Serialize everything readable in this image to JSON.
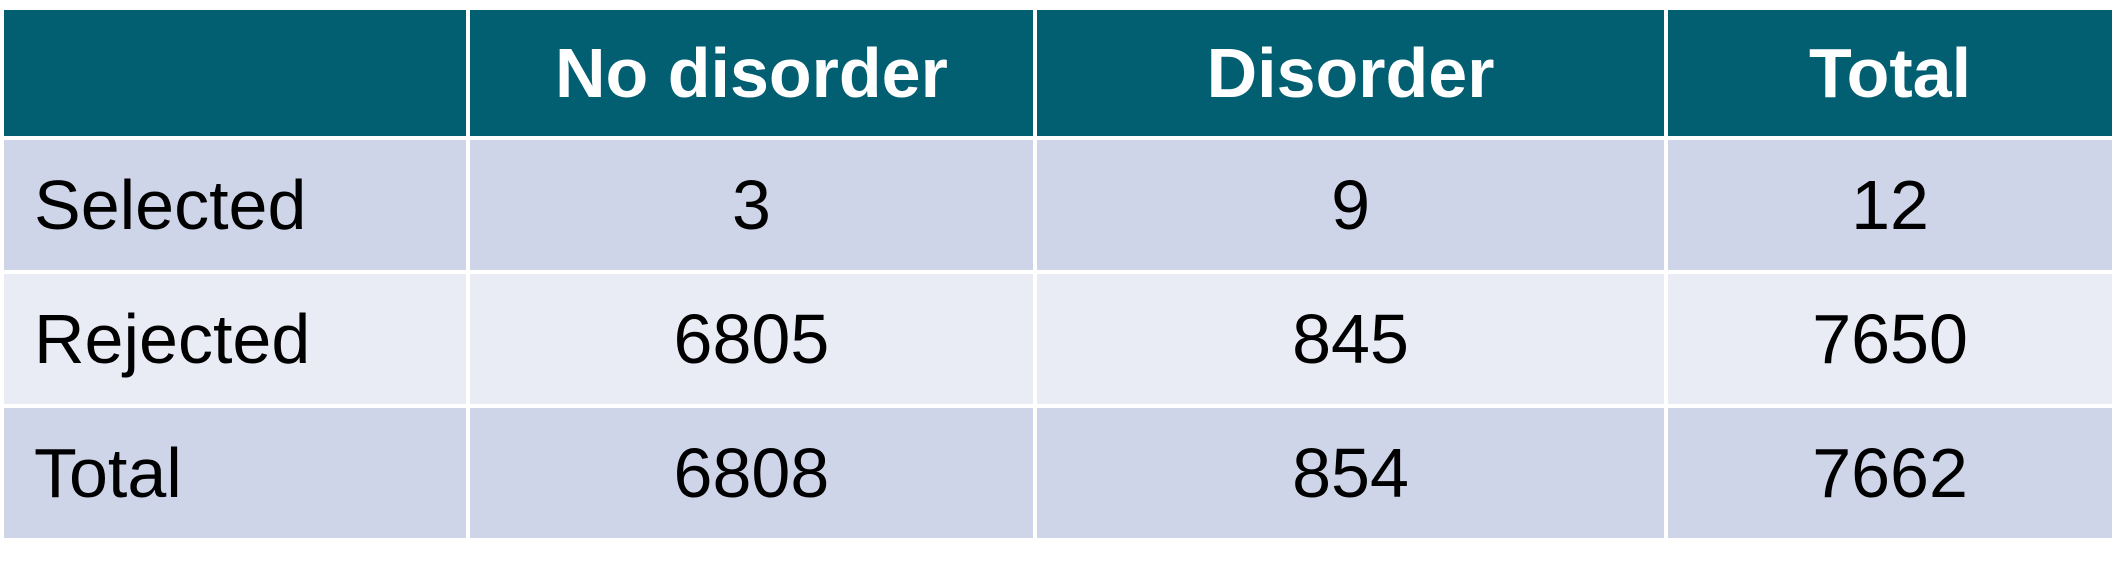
{
  "table": {
    "headers": [
      "",
      "No disorder",
      "Disorder",
      "Total"
    ],
    "rows": [
      {
        "label": "Selected",
        "cells": [
          "3",
          "9",
          "12"
        ]
      },
      {
        "label": "Rejected",
        "cells": [
          "6805",
          "845",
          "7650"
        ]
      },
      {
        "label": "Total",
        "cells": [
          "6808",
          "854",
          "7662"
        ]
      }
    ]
  },
  "colors": {
    "header_background": "#025f72",
    "header_text": "#ffffff",
    "row_dark": "#cfd5e9",
    "row_light": "#e9ebf5"
  }
}
